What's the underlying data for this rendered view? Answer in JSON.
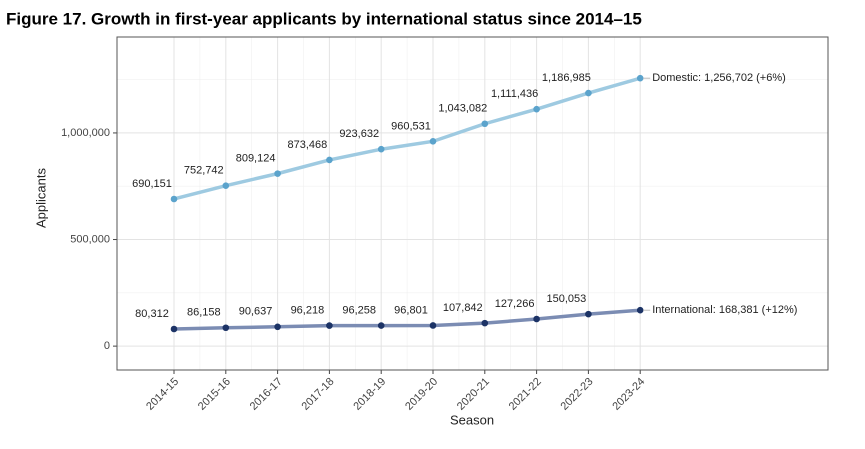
{
  "chart_data": {
    "type": "line",
    "title": "Figure 17. Growth in first-year applicants by international status since 2014–15",
    "x_label": "Season",
    "y_label": "Applicants",
    "categories": [
      "2014-15",
      "2015-16",
      "2016-17",
      "2017-18",
      "2018-19",
      "2019-20",
      "2020-21",
      "2021-22",
      "2022-23",
      "2023-24"
    ],
    "series": [
      {
        "line_color": "#9ecae1",
        "color": "#5ba3cc",
        "values": [
          690151,
          752742,
          809124,
          873468,
          923632,
          960531,
          1043082,
          1111436,
          1186985,
          1256702
        ],
        "value_labels": [
          "690,151",
          "752,742",
          "809,124",
          "873,468",
          "923,632",
          "960,531",
          "1,043,082",
          "1,111,436",
          "1,186,985",
          null
        ],
        "end_label": "Domestic: 1,256,702 (+6%)"
      },
      {
        "line_color": "#7b8cb3",
        "color": "#1c3366",
        "values": [
          80312,
          86158,
          90637,
          96218,
          96258,
          96801,
          107842,
          127266,
          150053,
          168381
        ],
        "value_labels": [
          "80,312",
          "86,158",
          "90,637",
          "96,218",
          "96,258",
          "96,801",
          "107,842",
          "127,266",
          "150,053",
          null
        ],
        "end_label": "International: 168,381 (+12%)"
      }
    ],
    "ylim": [
      -112000,
      1450000
    ],
    "yticks": [
      0,
      {
        "value": 500000,
        "label": "500,000"
      },
      {
        "value": 1000000,
        "label": "1,000,000"
      }
    ],
    "minor_yticks": [
      250000,
      750000,
      1250000
    ],
    "grid": true
  }
}
